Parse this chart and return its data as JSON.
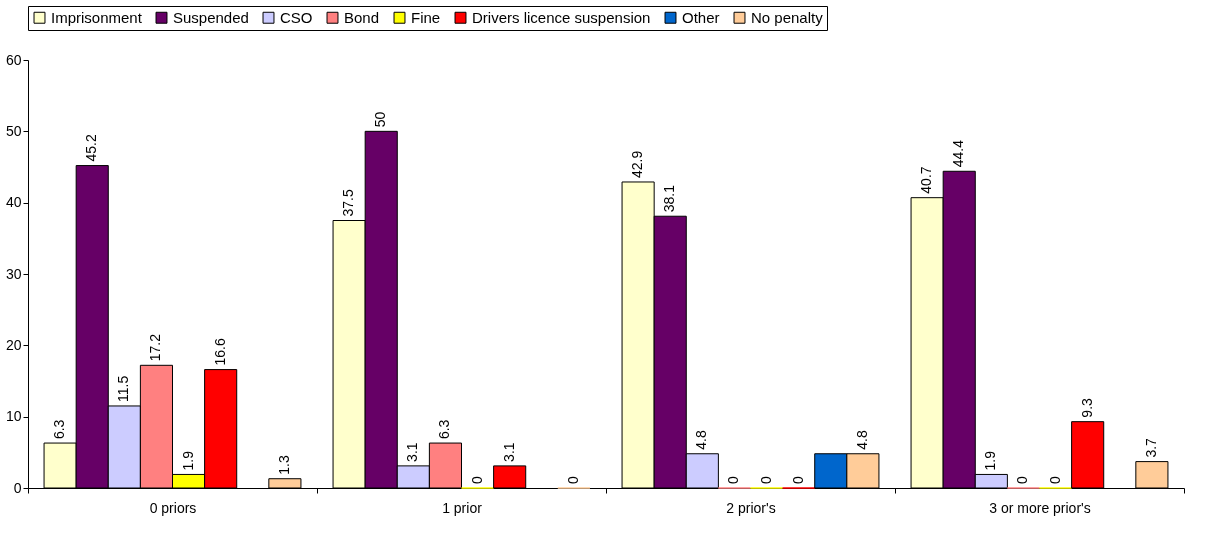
{
  "chart_data": {
    "type": "bar",
    "categories": [
      "0 priors",
      "1 prior",
      "2 prior's",
      "3 or more prior's"
    ],
    "series": [
      {
        "name": "Imprisonment",
        "color": "#ffffcc",
        "values": [
          6.3,
          37.5,
          42.9,
          40.7
        ],
        "value_labels": [
          "6.3",
          "37.5",
          "42.9",
          "40.7"
        ]
      },
      {
        "name": "Suspended",
        "color": "#660066",
        "values": [
          45.2,
          50,
          38.1,
          44.4
        ],
        "value_labels": [
          "45.2",
          "50",
          "38.1",
          "44.4"
        ]
      },
      {
        "name": "CSO",
        "color": "#ccccff",
        "values": [
          11.5,
          3.1,
          4.8,
          1.9
        ],
        "value_labels": [
          "11.5",
          "3.1",
          "4.8",
          "1.9"
        ]
      },
      {
        "name": "Bond",
        "color": "#ff8080",
        "values": [
          17.2,
          6.3,
          0,
          0
        ],
        "value_labels": [
          "17.2",
          "6.3",
          "0",
          "0"
        ]
      },
      {
        "name": "Fine",
        "color": "#ffff00",
        "values": [
          1.9,
          0,
          0,
          0
        ],
        "value_labels": [
          "1.9",
          "0",
          "0",
          "0"
        ]
      },
      {
        "name": "Drivers licence suspension",
        "color": "#ff0000",
        "values": [
          16.6,
          3.1,
          0,
          9.3
        ],
        "value_labels": [
          "16.6",
          "3.1",
          "0",
          "9.3"
        ]
      },
      {
        "name": "Other",
        "color": "#0066cc",
        "values": [
          null,
          null,
          4.8,
          null
        ],
        "value_labels": [
          null,
          null,
          null,
          null
        ]
      },
      {
        "name": "No penalty",
        "color": "#ffcc99",
        "values": [
          1.3,
          0,
          4.8,
          3.7
        ],
        "value_labels": [
          "1.3",
          "0",
          "4.8",
          "3.7"
        ]
      }
    ],
    "ylim": [
      0,
      60
    ],
    "yticks": [
      0,
      10,
      20,
      30,
      40,
      50,
      60
    ],
    "grid": false,
    "legend": "top"
  }
}
